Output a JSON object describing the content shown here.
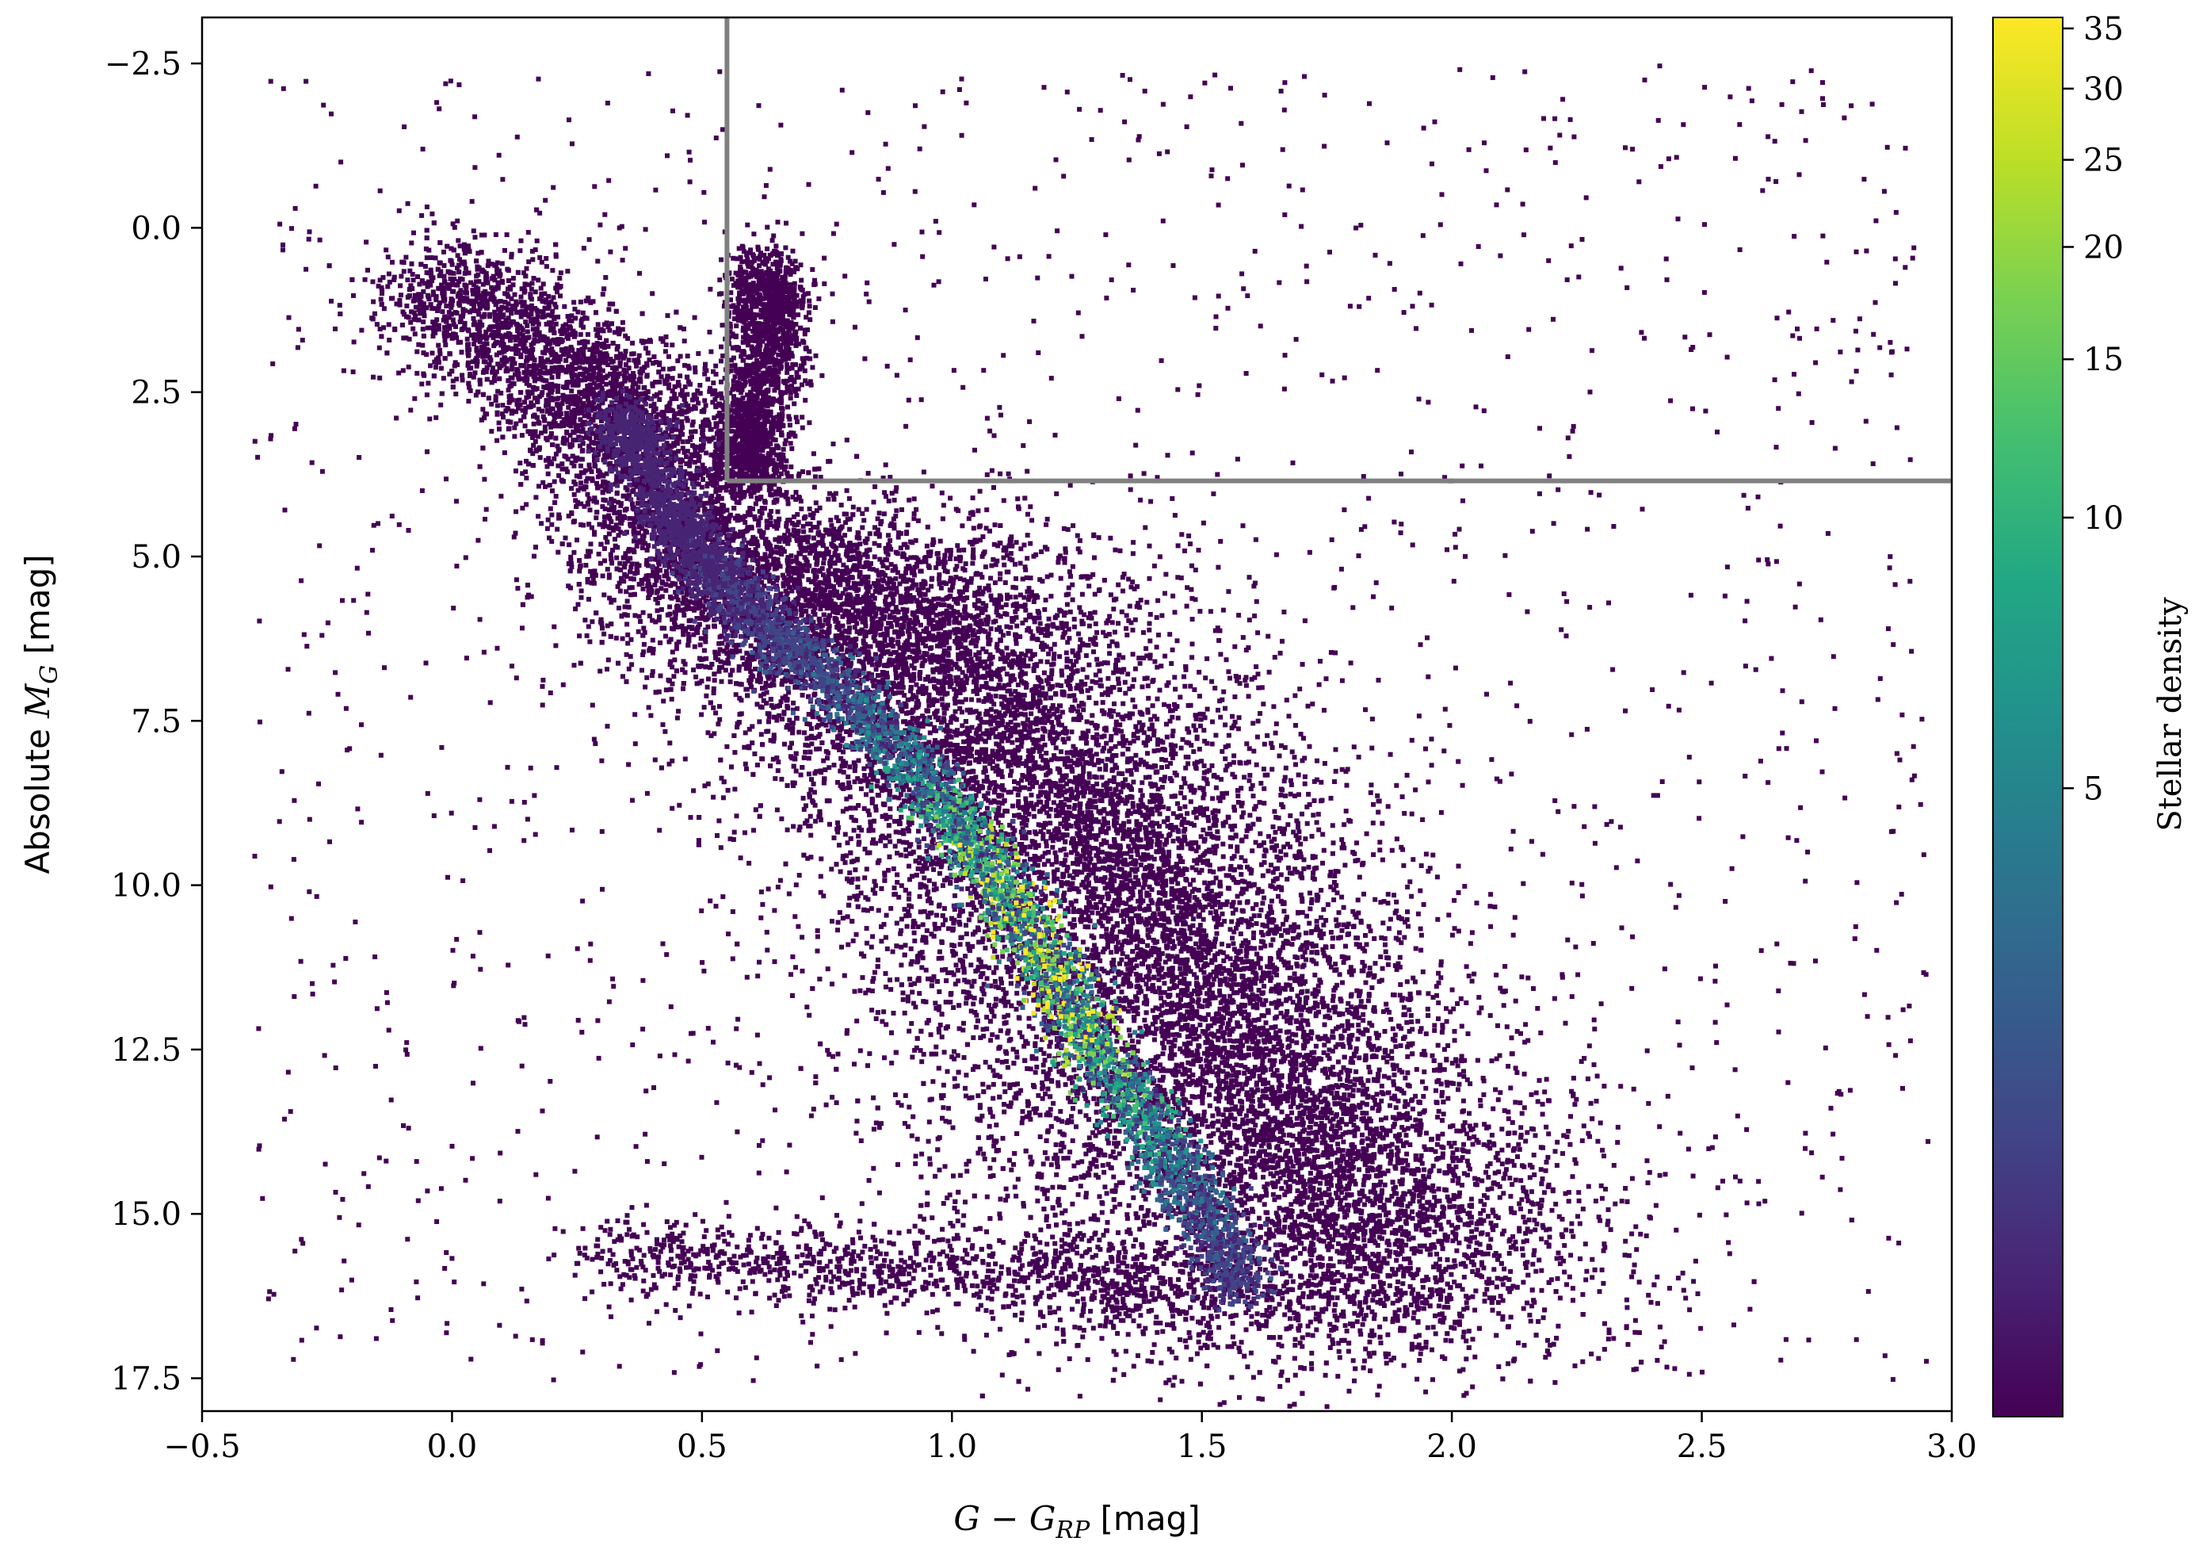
{
  "chart_data": {
    "type": "heatmap",
    "title": "",
    "xlabel": {
      "math": "G − G",
      "sub": "RP",
      "unit": " [mag]"
    },
    "ylabel": {
      "prefix": "Absolute ",
      "math": "M",
      "sub": "G",
      "unit": " [mag]"
    },
    "xlim": [
      -0.5,
      3.0
    ],
    "ylim": [
      18.0,
      -3.2
    ],
    "y_inverted": true,
    "xticks": [
      -0.5,
      0.0,
      0.5,
      1.0,
      1.5,
      2.0,
      2.5,
      3.0
    ],
    "xtick_labels": [
      "−0.5",
      "0.0",
      "0.5",
      "1.0",
      "1.5",
      "2.0",
      "2.5",
      "3.0"
    ],
    "yticks": [
      -2.5,
      0.0,
      2.5,
      5.0,
      7.5,
      10.0,
      12.5,
      15.0,
      17.5
    ],
    "ytick_labels": [
      "−2.5",
      "0.0",
      "2.5",
      "5.0",
      "7.5",
      "10.0",
      "12.5",
      "15.0",
      "17.5"
    ],
    "colorbar": {
      "label": "Stellar density",
      "colormap": "viridis",
      "scale": "log",
      "range": [
        1,
        36
      ],
      "ticks": [
        5,
        10,
        15,
        20,
        25,
        30,
        35
      ],
      "tick_labels": [
        "5",
        "10",
        "15",
        "20",
        "25",
        "30",
        "35"
      ]
    },
    "selection_box": {
      "color": "#808080",
      "x_min": 0.55,
      "y_max": 3.85,
      "description_shape": "vertical line at x=0.55 from top to y=3.85, horizontal line at y=3.85 from x=0.55 to right edge"
    },
    "ridge_main_sequence": [
      [
        -0.05,
        0.8
      ],
      [
        0.2,
        2.0
      ],
      [
        0.35,
        3.0
      ],
      [
        0.45,
        4.5
      ],
      [
        0.55,
        5.5
      ],
      [
        0.7,
        6.5
      ],
      [
        0.9,
        8.0
      ],
      [
        1.05,
        9.5
      ],
      [
        1.18,
        11.0
      ],
      [
        1.28,
        12.5
      ],
      [
        1.42,
        14.0
      ],
      [
        1.55,
        15.5
      ],
      [
        1.6,
        17.0
      ]
    ],
    "red_giant_branch": [
      [
        0.62,
        0.5
      ],
      [
        0.63,
        1.5
      ],
      [
        0.6,
        2.8
      ],
      [
        0.58,
        3.8
      ]
    ]
  }
}
